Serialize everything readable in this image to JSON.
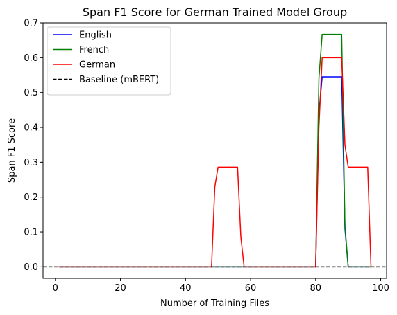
{
  "chart_data": {
    "type": "line",
    "title": "Span F1 Score for German Trained Model Group",
    "xlabel": "Number of Training Files",
    "ylabel": "Span F1 Score",
    "xlim": [
      -3.8,
      101.8
    ],
    "ylim": [
      -0.033,
      0.7
    ],
    "xticks": [
      0,
      20,
      40,
      60,
      80,
      100
    ],
    "yticks": [
      0.0,
      0.1,
      0.2,
      0.3,
      0.4,
      0.5,
      0.6,
      0.7
    ],
    "xtick_labels": [
      "0",
      "20",
      "40",
      "60",
      "80",
      "100"
    ],
    "ytick_labels": [
      "0.0",
      "0.1",
      "0.2",
      "0.3",
      "0.4",
      "0.5",
      "0.6",
      "0.7"
    ],
    "grid": false,
    "legend": "top-left",
    "series": [
      {
        "name": "English",
        "color": "#0000ff",
        "style": "solid",
        "x": [
          1,
          80,
          81,
          82,
          88,
          89,
          90,
          97
        ],
        "y": [
          0,
          0,
          0.44,
          0.545,
          0.545,
          0.11,
          0,
          0
        ]
      },
      {
        "name": "French",
        "color": "#008000",
        "style": "solid",
        "x": [
          1,
          80,
          81,
          82,
          88,
          89,
          90,
          97
        ],
        "y": [
          0,
          0,
          0.54,
          0.667,
          0.667,
          0.12,
          0,
          0
        ]
      },
      {
        "name": "German",
        "color": "#ff0000",
        "style": "solid",
        "x": [
          1,
          48,
          49,
          50,
          56,
          57,
          58,
          80,
          81,
          82,
          88,
          89,
          90,
          96,
          97
        ],
        "y": [
          0,
          0,
          0.229,
          0.286,
          0.286,
          0.086,
          0,
          0,
          0.4,
          0.6,
          0.6,
          0.35,
          0.286,
          0.286,
          0
        ]
      },
      {
        "name": "Baseline (mBERT)",
        "color": "#000000",
        "style": "dashed",
        "x": [
          -3.8,
          101.8
        ],
        "y": [
          0,
          0
        ]
      }
    ]
  }
}
